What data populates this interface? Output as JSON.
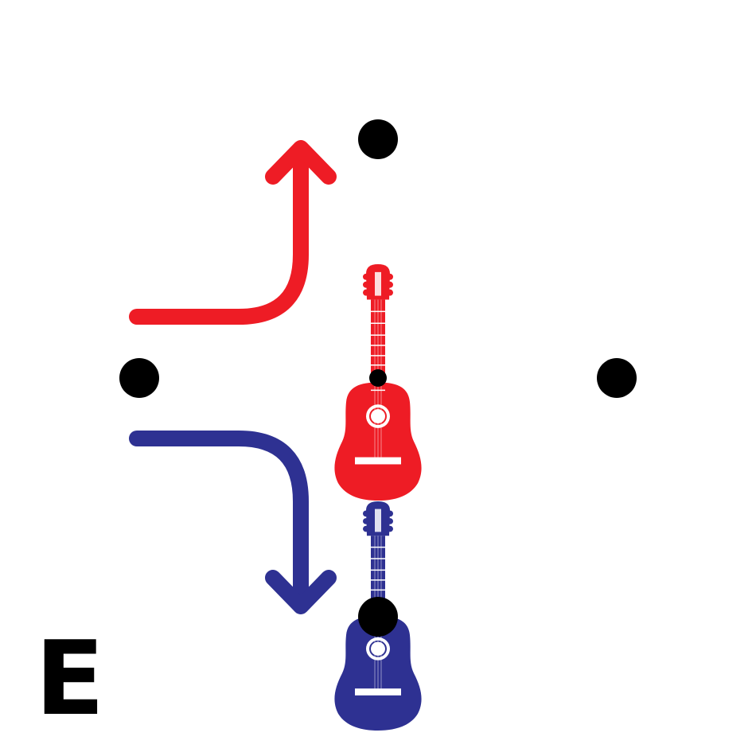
{
  "panel": {
    "letter": "E"
  },
  "colors": {
    "background": "#ffffff",
    "dot": "#000000",
    "red": "#ee1c25",
    "blue": "#2e3192",
    "soundhole": "#ffffff"
  },
  "icons": {
    "red_instrument": "guitar-icon",
    "blue_instrument": "guitar-icon",
    "red_arrow": "arrow-up-icon",
    "blue_arrow": "arrow-down-icon"
  }
}
